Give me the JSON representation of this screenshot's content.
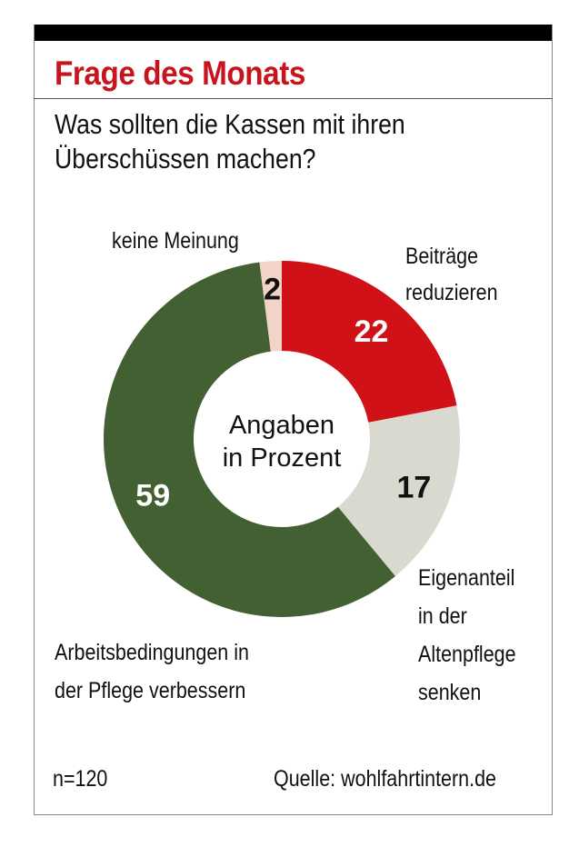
{
  "header": {
    "title": "Frage des Monats",
    "question_line1": "Was sollten die Kassen mit ihren",
    "question_line2": "Überschüssen machen?"
  },
  "chart_data": {
    "type": "pie",
    "variant": "donut",
    "title": "Frage des Monats",
    "subtitle": "Was sollten die Kassen mit ihren Überschüssen machen?",
    "center_label": [
      "Angaben",
      "in Prozent"
    ],
    "unit": "%",
    "slices": [
      {
        "name": "Beiträge reduzieren",
        "value": 22,
        "color": "#d01218",
        "label_color": "#ffffff"
      },
      {
        "name": "Eigenanteil in der Altenpflege senken",
        "value": 17,
        "color": "#d9d9cf",
        "label_color": "#111111"
      },
      {
        "name": "Arbeitsbedingungen in der Pflege verbessern",
        "value": 59,
        "color": "#436033",
        "label_color": "#ffffff"
      },
      {
        "name": "keine Meinung",
        "value": 2,
        "color": "#f1d3c8",
        "label_color": "#111111"
      }
    ]
  },
  "labels": {
    "keine_meinung": "keine Meinung",
    "beitraege_1": "Beiträge",
    "beitraege_2": "reduzieren",
    "eigen_1": "Eigenanteil",
    "eigen_2": "in der",
    "eigen_3": "Altenpflege",
    "eigen_4": "senken",
    "arbeit_1": "Arbeitsbedingungen in",
    "arbeit_2": "der Pflege verbessern"
  },
  "footer": {
    "sample": "n=120",
    "source": "Quelle: wohlfahrtintern.de"
  }
}
